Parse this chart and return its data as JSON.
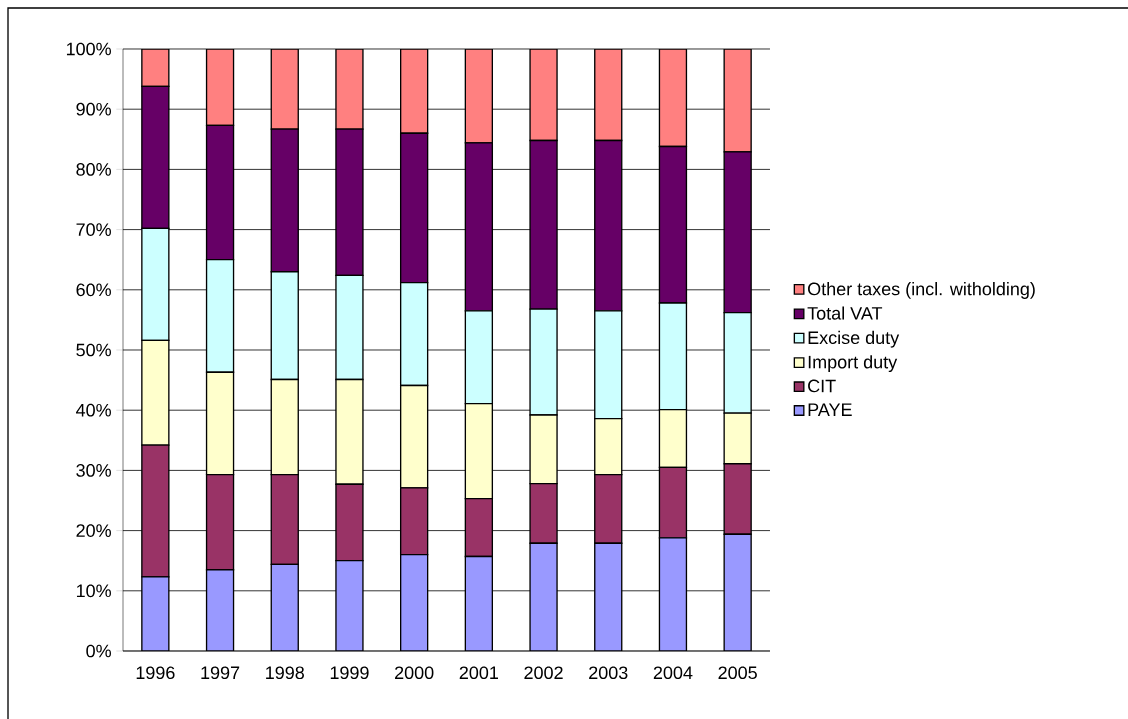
{
  "chart_data": {
    "type": "bar",
    "stacked": true,
    "categories": [
      "1996",
      "1997",
      "1998",
      "1999",
      "2000",
      "2001",
      "2002",
      "2003",
      "2004",
      "2005"
    ],
    "series": [
      {
        "name": "PAYE",
        "color": "#9999ff",
        "values": [
          12.3,
          13.5,
          14.4,
          15.0,
          16.0,
          15.7,
          17.9,
          17.9,
          18.8,
          19.4
        ]
      },
      {
        "name": "CIT",
        "color": "#993366",
        "values": [
          21.9,
          15.8,
          14.9,
          12.7,
          11.1,
          9.6,
          9.9,
          11.4,
          11.7,
          11.7
        ]
      },
      {
        "name": "Import duty",
        "color": "#ffffcc",
        "values": [
          17.4,
          17.0,
          15.8,
          17.4,
          17.0,
          15.8,
          11.4,
          9.3,
          9.6,
          8.4
        ]
      },
      {
        "name": "Excise duty",
        "color": "#ccffff",
        "values": [
          18.6,
          18.7,
          17.9,
          17.3,
          17.1,
          15.4,
          17.6,
          17.9,
          17.7,
          16.7
        ]
      },
      {
        "name": "Total VAT",
        "color": "#660066",
        "values": [
          23.6,
          22.3,
          23.7,
          24.3,
          24.8,
          27.9,
          28.0,
          28.3,
          26.0,
          26.7
        ]
      },
      {
        "name": "Other taxes (incl. witholding)",
        "color": "#ff8080",
        "values": [
          6.2,
          12.7,
          13.3,
          13.3,
          14.0,
          15.6,
          15.2,
          15.2,
          16.2,
          17.1
        ]
      }
    ],
    "ylim": [
      0,
      100
    ],
    "yticks": [
      {
        "value": 0,
        "label": "0%"
      },
      {
        "value": 10,
        "label": "10%"
      },
      {
        "value": 20,
        "label": "20%"
      },
      {
        "value": 30,
        "label": "30%"
      },
      {
        "value": 40,
        "label": "40%"
      },
      {
        "value": 50,
        "label": "50%"
      },
      {
        "value": 60,
        "label": "60%"
      },
      {
        "value": 70,
        "label": "70%"
      },
      {
        "value": 80,
        "label": "80%"
      },
      {
        "value": 90,
        "label": "90%"
      },
      {
        "value": 100,
        "label": "100%"
      }
    ],
    "grid": "y",
    "legend": "right"
  }
}
